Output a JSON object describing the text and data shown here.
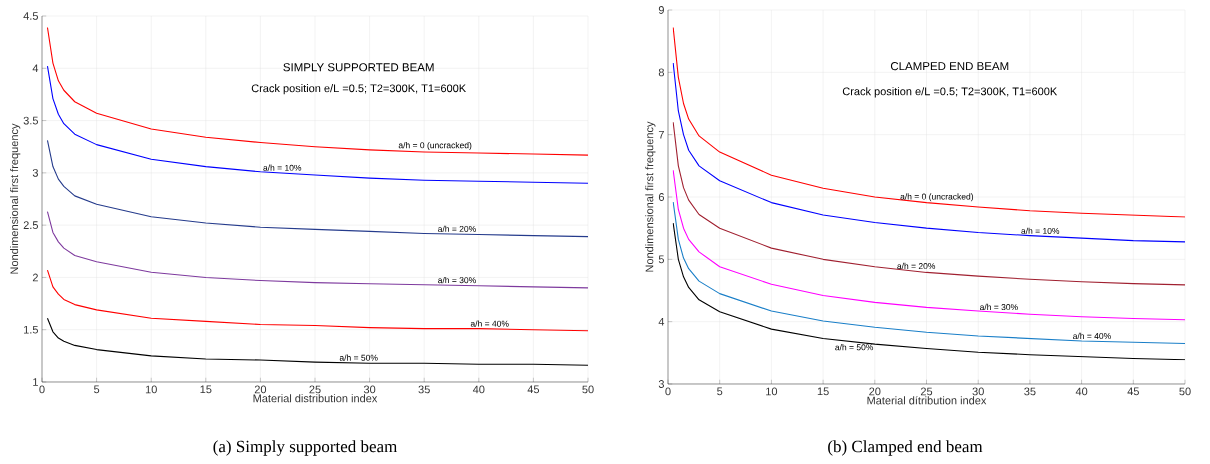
{
  "chart_data": [
    {
      "type": "line",
      "title": "SIMPLY SUPPORTED BEAM",
      "subtitle": "Crack position e/L =0.5; T2=300K, T1=600K",
      "xlabel": "Material distribution index",
      "ylabel": "Nondimensional first frequency",
      "annotations": [
        "(a)  Simply supported beam"
      ],
      "x": [
        0.5,
        1,
        1.5,
        2,
        3,
        5,
        10,
        15,
        20,
        25,
        30,
        35,
        40,
        45,
        50
      ],
      "series": [
        {
          "name": "a/h = 0 (uncracked)",
          "color": "#ff0000",
          "values": [
            4.39,
            4.05,
            3.88,
            3.79,
            3.68,
            3.57,
            3.42,
            3.34,
            3.29,
            3.25,
            3.22,
            3.2,
            3.19,
            3.18,
            3.17
          ]
        },
        {
          "name": "a/h = 10%",
          "color": "#0000ff",
          "values": [
            4.02,
            3.71,
            3.56,
            3.47,
            3.37,
            3.27,
            3.13,
            3.06,
            3.01,
            2.98,
            2.95,
            2.93,
            2.92,
            2.91,
            2.9
          ]
        },
        {
          "name": "a/h = 20%",
          "color": "#253b8c",
          "values": [
            3.31,
            3.06,
            2.94,
            2.87,
            2.78,
            2.7,
            2.58,
            2.52,
            2.48,
            2.46,
            2.44,
            2.42,
            2.41,
            2.4,
            2.39
          ]
        },
        {
          "name": "a/h = 30%",
          "color": "#7e3a9e",
          "values": [
            2.63,
            2.43,
            2.34,
            2.28,
            2.21,
            2.15,
            2.05,
            2.0,
            1.97,
            1.95,
            1.94,
            1.93,
            1.92,
            1.91,
            1.9
          ]
        },
        {
          "name": "a/h = 40%",
          "color": "#ff0000",
          "values": [
            2.07,
            1.91,
            1.84,
            1.79,
            1.74,
            1.69,
            1.61,
            1.58,
            1.55,
            1.54,
            1.52,
            1.51,
            1.51,
            1.5,
            1.49
          ]
        },
        {
          "name": "a/h = 50%",
          "color": "#000000",
          "values": [
            1.61,
            1.48,
            1.42,
            1.39,
            1.35,
            1.31,
            1.25,
            1.22,
            1.21,
            1.19,
            1.18,
            1.18,
            1.17,
            1.17,
            1.16
          ]
        }
      ],
      "xlim": [
        0,
        50
      ],
      "ylim": [
        1,
        4.5
      ],
      "xticks": [
        0,
        5,
        10,
        15,
        20,
        25,
        30,
        35,
        40,
        45,
        50
      ],
      "yticks": [
        1,
        1.5,
        2,
        2.5,
        3,
        3.5,
        4,
        4.5
      ],
      "grid": true,
      "marker": "none"
    },
    {
      "type": "line",
      "title": "CLAMPED END BEAM",
      "subtitle": "Crack position e/L =0.5; T2=300K, T1=600K",
      "xlabel": "Material dítribution index",
      "ylabel": "Nondimensional first frequency",
      "annotations": [
        "(b)  Clamped end beam"
      ],
      "x": [
        0.5,
        1,
        1.5,
        2,
        3,
        5,
        10,
        15,
        20,
        25,
        30,
        35,
        40,
        45,
        50
      ],
      "series": [
        {
          "name": "a/h = 0 (uncracked)",
          "color": "#ff0000",
          "values": [
            8.72,
            7.92,
            7.5,
            7.25,
            6.98,
            6.72,
            6.35,
            6.14,
            6.0,
            5.91,
            5.84,
            5.78,
            5.74,
            5.71,
            5.68
          ]
        },
        {
          "name": "a/h = 10%",
          "color": "#0000ff",
          "values": [
            8.15,
            7.38,
            7.0,
            6.75,
            6.5,
            6.26,
            5.91,
            5.71,
            5.59,
            5.5,
            5.43,
            5.38,
            5.34,
            5.3,
            5.28
          ]
        },
        {
          "name": "a/h = 20%",
          "color": "#a02030",
          "values": [
            7.2,
            6.5,
            6.15,
            5.95,
            5.72,
            5.5,
            5.18,
            5.0,
            4.88,
            4.79,
            4.73,
            4.68,
            4.64,
            4.61,
            4.59
          ]
        },
        {
          "name": "a/h = 30%",
          "color": "#ff00ff",
          "values": [
            6.43,
            5.8,
            5.5,
            5.32,
            5.12,
            4.88,
            4.6,
            4.42,
            4.31,
            4.23,
            4.17,
            4.12,
            4.08,
            4.05,
            4.03
          ]
        },
        {
          "name": "a/h = 40%",
          "color": "#1a7fc8",
          "values": [
            5.92,
            5.32,
            5.02,
            4.85,
            4.65,
            4.45,
            4.17,
            4.01,
            3.91,
            3.83,
            3.77,
            3.73,
            3.69,
            3.67,
            3.65
          ]
        },
        {
          "name": "a/h = 50%",
          "color": "#000000",
          "values": [
            5.58,
            5.0,
            4.72,
            4.55,
            4.35,
            4.16,
            3.88,
            3.73,
            3.64,
            3.57,
            3.51,
            3.47,
            3.44,
            3.41,
            3.39
          ]
        }
      ],
      "xlim": [
        0,
        50
      ],
      "ylim": [
        3,
        9
      ],
      "xticks": [
        0,
        5,
        10,
        15,
        20,
        25,
        30,
        35,
        40,
        45,
        50
      ],
      "yticks": [
        3,
        4,
        5,
        6,
        7,
        8,
        9
      ],
      "grid": true,
      "marker": "none"
    }
  ]
}
